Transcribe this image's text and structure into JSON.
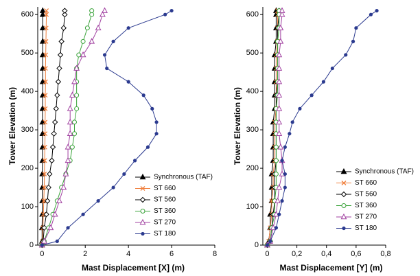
{
  "chart_data": [
    {
      "type": "line",
      "xlabel": "Mast Displacement [X] (m)",
      "ylabel": "Tower Elevation (m)",
      "xlim": [
        -0.2,
        8
      ],
      "xticks": [
        0,
        2,
        4,
        6,
        8
      ],
      "ylim": [
        0,
        620
      ],
      "yticks": [
        0,
        100,
        200,
        300,
        400,
        500,
        600
      ],
      "y": [
        0,
        10,
        45,
        80,
        115,
        150,
        185,
        220,
        255,
        290,
        320,
        355,
        390,
        425,
        460,
        495,
        530,
        565,
        600,
        610
      ],
      "series": [
        {
          "name": "Synchronous (TAF)",
          "color": "#000000",
          "marker": "triangle-filled",
          "x": [
            0,
            0,
            0,
            0.01,
            0.01,
            0.01,
            0.01,
            0.02,
            0.02,
            0.02,
            0.02,
            0.02,
            0.03,
            0.03,
            0.03,
            0.03,
            0.03,
            0.03,
            0.03,
            0.03
          ]
        },
        {
          "name": "ST 660",
          "color": "#f07f3c",
          "marker": "x",
          "x": [
            0,
            0.02,
            0.04,
            0.06,
            0.08,
            0.1,
            0.11,
            0.12,
            0.13,
            0.14,
            0.14,
            0.15,
            0.15,
            0.16,
            0.16,
            0.17,
            0.18,
            0.19,
            0.2,
            0.2
          ]
        },
        {
          "name": "ST 560",
          "color": "#000000",
          "marker": "diamond-open",
          "x": [
            0,
            0.05,
            0.1,
            0.2,
            0.25,
            0.3,
            0.35,
            0.45,
            0.5,
            0.55,
            0.6,
            0.65,
            0.7,
            0.75,
            0.8,
            0.85,
            0.9,
            1.0,
            1.05,
            1.05
          ]
        },
        {
          "name": "ST 360",
          "color": "#3aa33a",
          "marker": "circle-open",
          "x": [
            0,
            0.1,
            0.3,
            0.5,
            0.7,
            0.9,
            1.1,
            1.3,
            1.4,
            1.5,
            1.5,
            1.6,
            1.6,
            1.6,
            1.6,
            1.7,
            1.9,
            2.1,
            2.3,
            2.3
          ]
        },
        {
          "name": "ST 270",
          "color": "#a040a0",
          "marker": "triangle-open",
          "x": [
            0,
            0.1,
            0.4,
            0.6,
            0.8,
            1.0,
            1.1,
            1.2,
            1.2,
            1.3,
            1.3,
            1.3,
            1.4,
            1.5,
            1.6,
            1.9,
            2.3,
            2.6,
            2.8,
            2.9
          ]
        },
        {
          "name": "ST 180",
          "color": "#2b3a8f",
          "marker": "circle-filled",
          "x": [
            0,
            0.7,
            1.2,
            1.9,
            2.6,
            3.3,
            3.8,
            4.3,
            4.9,
            5.3,
            5.3,
            5.1,
            4.7,
            4.0,
            3.0,
            2.9,
            3.3,
            4.0,
            5.7,
            6.0
          ]
        }
      ]
    },
    {
      "type": "line",
      "xlabel": "Mast Displacement [Y] (m)",
      "ylabel": "Tower Elevation (m)",
      "xlim": [
        -0.03,
        0.8
      ],
      "xticks": [
        0,
        {
          "value": 0.2,
          "label": "0,2"
        },
        {
          "value": 0.4,
          "label": "0,4"
        },
        {
          "value": 0.6,
          "label": "0,6"
        },
        {
          "value": 0.8,
          "label": "0,8"
        }
      ],
      "ylim": [
        0,
        620
      ],
      "yticks": [
        0,
        100,
        200,
        300,
        400,
        500,
        600
      ],
      "y": [
        0,
        10,
        45,
        80,
        115,
        150,
        185,
        220,
        255,
        290,
        320,
        355,
        390,
        425,
        460,
        495,
        530,
        565,
        600,
        610
      ],
      "series": [
        {
          "name": "Synchronous (TAF)",
          "color": "#000000",
          "marker": "triangle-filled",
          "x": [
            0,
            0.01,
            0.02,
            0.02,
            0.03,
            0.03,
            0.03,
            0.04,
            0.04,
            0.04,
            0.04,
            0.05,
            0.05,
            0.05,
            0.05,
            0.05,
            0.06,
            0.06,
            0.06,
            0.06
          ]
        },
        {
          "name": "ST 660",
          "color": "#f07f3c",
          "marker": "x",
          "x": [
            0,
            0.01,
            0.02,
            0.03,
            0.03,
            0.04,
            0.04,
            0.05,
            0.05,
            0.05,
            0.05,
            0.06,
            0.06,
            0.06,
            0.06,
            0.06,
            0.07,
            0.07,
            0.07,
            0.07
          ]
        },
        {
          "name": "ST 560",
          "color": "#000000",
          "marker": "diamond-open",
          "x": [
            0,
            0.02,
            0.03,
            0.04,
            0.05,
            0.05,
            0.05,
            0.06,
            0.06,
            0.06,
            0.06,
            0.06,
            0.06,
            0.07,
            0.07,
            0.07,
            0.07,
            0.07,
            0.08,
            0.08
          ]
        },
        {
          "name": "ST 360",
          "color": "#3aa33a",
          "marker": "circle-open",
          "x": [
            0,
            0.02,
            0.03,
            0.05,
            0.05,
            0.06,
            0.06,
            0.06,
            0.06,
            0.06,
            0.06,
            0.06,
            0.07,
            0.07,
            0.07,
            0.07,
            0.07,
            0.08,
            0.08,
            0.08
          ]
        },
        {
          "name": "ST 270",
          "color": "#a040a0",
          "marker": "triangle-open",
          "x": [
            0,
            0.02,
            0.04,
            0.06,
            0.07,
            0.08,
            0.1,
            0.1,
            0.09,
            0.08,
            0.08,
            0.08,
            0.08,
            0.08,
            0.08,
            0.08,
            0.09,
            0.09,
            0.1,
            0.1
          ]
        },
        {
          "name": "ST 180",
          "color": "#2b3a8f",
          "marker": "circle-filled",
          "x": [
            0,
            0.02,
            0.06,
            0.08,
            0.1,
            0.12,
            0.12,
            0.1,
            0.12,
            0.15,
            0.17,
            0.22,
            0.3,
            0.38,
            0.44,
            0.53,
            0.58,
            0.6,
            0.7,
            0.74
          ]
        }
      ]
    }
  ]
}
